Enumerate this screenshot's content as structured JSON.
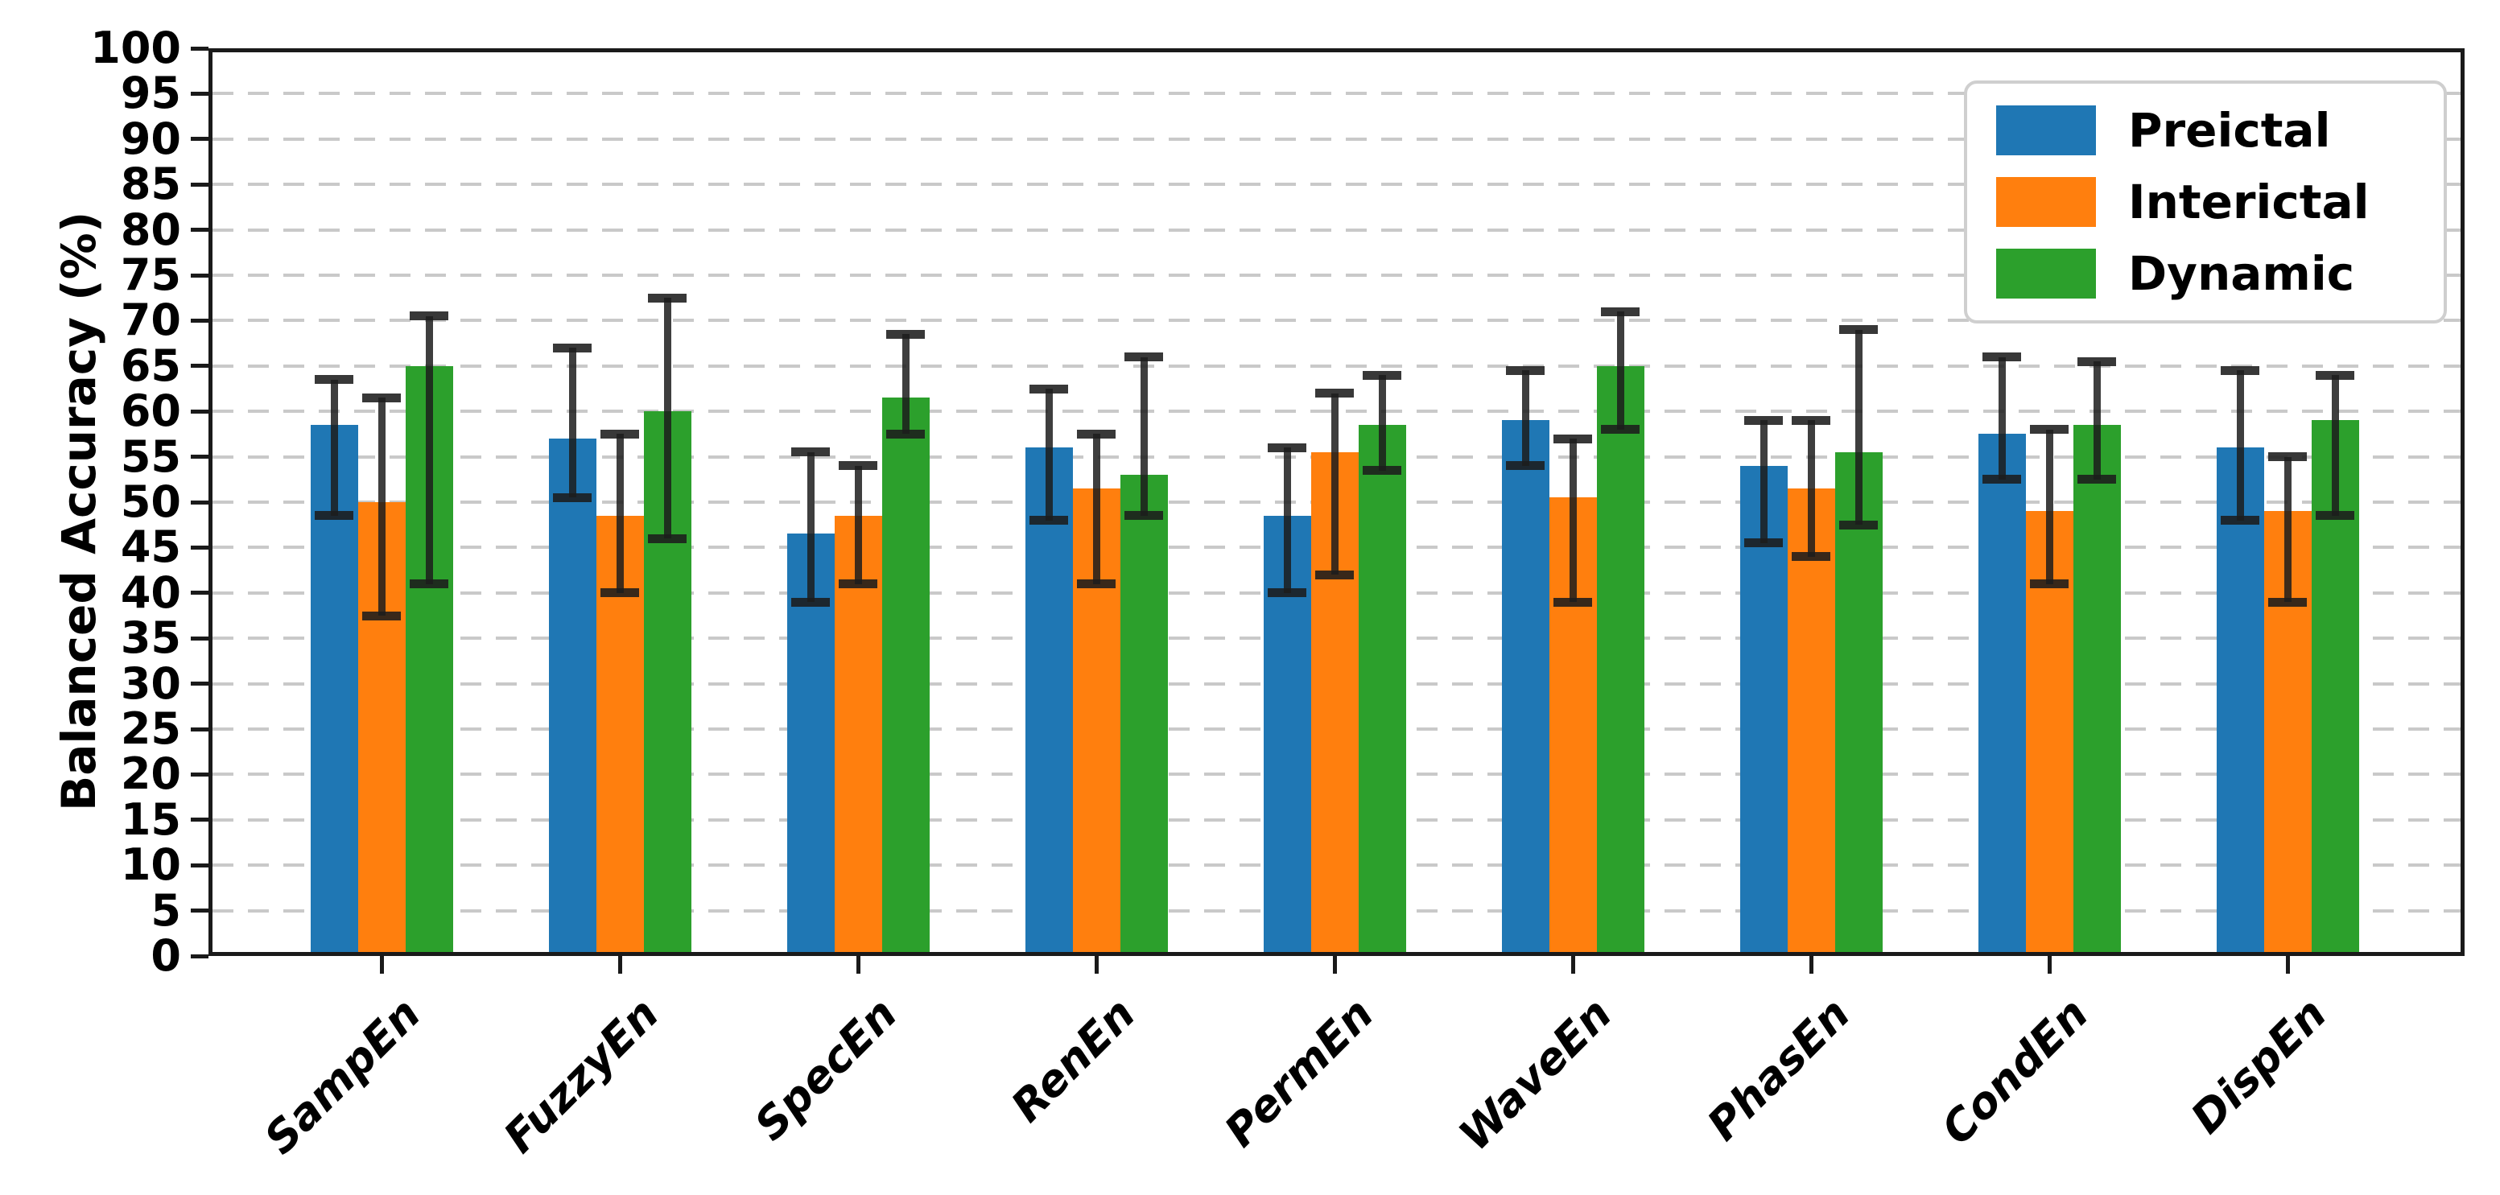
{
  "chart_data": {
    "type": "bar",
    "title": "",
    "ylabel": "Balanced Accuracy (%)",
    "xlabel": "",
    "ylim": [
      0,
      100
    ],
    "ytick_step": 5,
    "grid": "horizontal-dashed",
    "legend_position": "upper-right",
    "background_color": "#ffffff",
    "grid_color": "#c9c9c9",
    "errorbar_color": "#1c1c1c",
    "categories": [
      "SampEn",
      "FuzzyEn",
      "SpecEn",
      "RenEn",
      "PermEn",
      "WaveEn",
      "PhasEn",
      "CondEn",
      "DispEn"
    ],
    "series": [
      {
        "name": "Preictal",
        "color": "#1f77b4",
        "values": [
          58.5,
          57,
          46.5,
          56,
          48.5,
          59,
          54,
          57.5,
          56
        ],
        "err_low": [
          48.5,
          50.5,
          39,
          48,
          40,
          54,
          45.5,
          52.5,
          48
        ],
        "err_high": [
          63.5,
          67,
          55.5,
          62.5,
          56,
          64.5,
          59,
          66,
          64.5
        ]
      },
      {
        "name": "Interictal",
        "color": "#ff7f0e",
        "values": [
          50,
          48.5,
          48.5,
          51.5,
          55.5,
          50.5,
          51.5,
          49,
          49
        ],
        "err_low": [
          37.5,
          40,
          41,
          41,
          42,
          39,
          44,
          41,
          39
        ],
        "err_high": [
          61.5,
          57.5,
          54,
          57.5,
          62,
          57,
          59,
          58,
          55
        ]
      },
      {
        "name": "Dynamic",
        "color": "#2ca02c",
        "values": [
          65,
          60,
          61.5,
          53,
          58.5,
          65,
          55.5,
          58.5,
          59
        ],
        "err_low": [
          41,
          46,
          57.5,
          48.5,
          53.5,
          58,
          47.5,
          52.5,
          48.5
        ],
        "err_high": [
          70.5,
          72.5,
          68.5,
          66,
          64,
          71,
          69,
          65.5,
          64
        ]
      }
    ]
  }
}
